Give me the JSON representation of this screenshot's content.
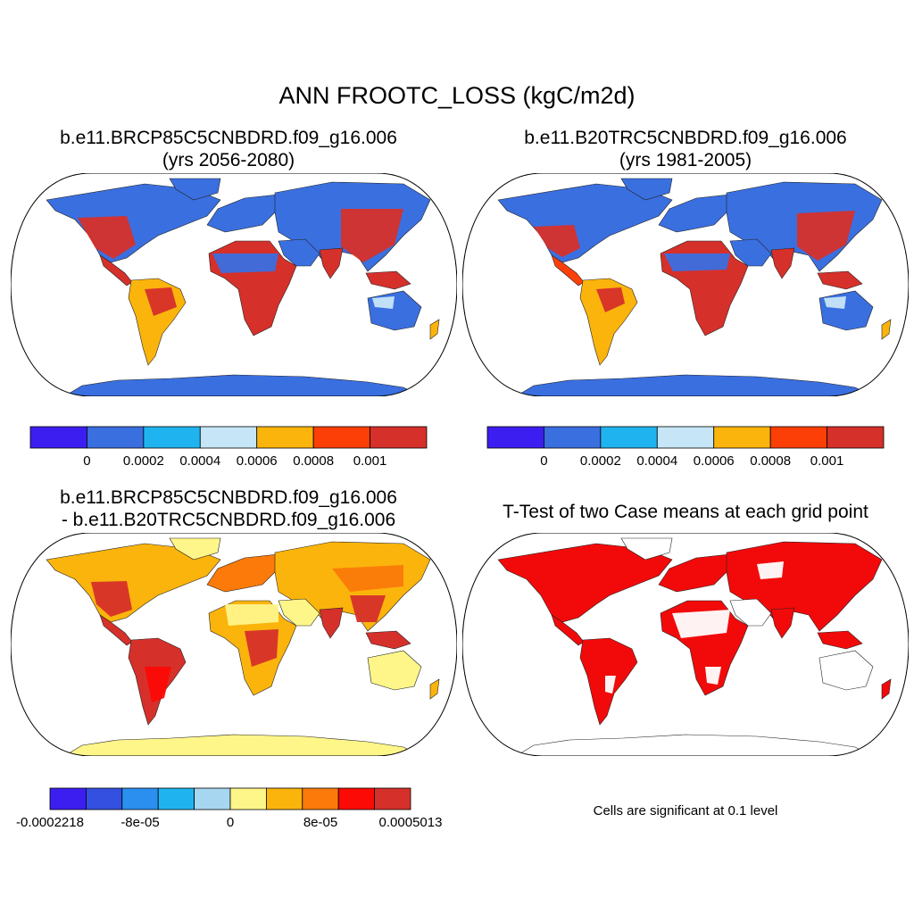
{
  "figure": {
    "title": "ANN FROOTC_LOSS (kgC/m2d)"
  },
  "panels": [
    {
      "id": "case1",
      "title_line1": "b.e11.BRCP85C5CNBDRD.f09_g16.006",
      "title_line2": "(yrs 2056-2080)",
      "colorbar": {
        "colors": [
          "#3d1ef0",
          "#3a6fe0",
          "#1fb4ef",
          "#c6e6f7",
          "#fbb40c",
          "#fc3f06",
          "#d6302a"
        ],
        "labels": [
          "0",
          "0.0002",
          "0.0004",
          "0.0006",
          "0.0008",
          "0.001"
        ]
      }
    },
    {
      "id": "case2",
      "title_line1": "b.e11.B20TRC5CNBDRD.f09_g16.006",
      "title_line2": "(yrs 1981-2005)",
      "colorbar": {
        "colors": [
          "#3d1ef0",
          "#3a6fe0",
          "#1fb4ef",
          "#c6e6f7",
          "#fbb40c",
          "#fc3f06",
          "#d6302a"
        ],
        "labels": [
          "0",
          "0.0002",
          "0.0004",
          "0.0006",
          "0.0008",
          "0.001"
        ]
      }
    },
    {
      "id": "diff",
      "title_line1": "b.e11.BRCP85C5CNBDRD.f09_g16.006",
      "title_line2": "- b.e11.B20TRC5CNBDRD.f09_g16.006",
      "colorbar": {
        "colors": [
          "#3d1ef0",
          "#3350e0",
          "#2b8ff0",
          "#1fb4ef",
          "#a6d6f0",
          "#fff68a",
          "#fbb40c",
          "#fb7a0a",
          "#fc0a05",
          "#d6302a"
        ],
        "labels": [
          "-0.0002218",
          "-8e-05",
          "0",
          "8e-05",
          "0.0005013"
        ]
      }
    },
    {
      "id": "ttest",
      "title_line1": "T-Test of two Case means at each grid point",
      "note": "Cells are significant at 0.1 level"
    }
  ],
  "colors": {
    "ocean": "#ffffff",
    "outline": "#000000",
    "sig_color": "#f20a0a"
  }
}
